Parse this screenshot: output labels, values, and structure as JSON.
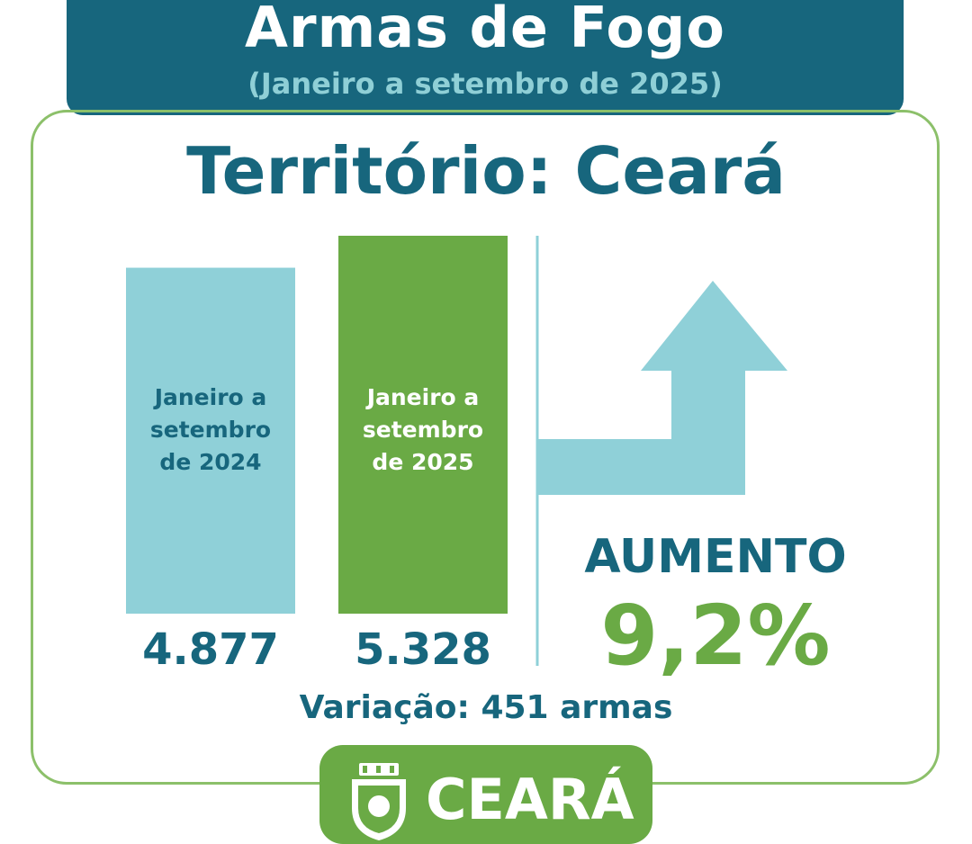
{
  "header": {
    "title": "Armas de Fogo",
    "subtitle": "(Janeiro a setembro de 2025)"
  },
  "territory": "Território: Ceará",
  "chart_data": {
    "type": "bar",
    "categories": [
      "Janeiro a setembro de 2024",
      "Janeiro a setembro de 2025"
    ],
    "category_lines": [
      [
        "Janeiro a",
        "setembro",
        "de 2024"
      ],
      [
        "Janeiro a",
        "setembro",
        "de 2025"
      ]
    ],
    "values": [
      4877,
      5328
    ],
    "value_labels": [
      "4.877",
      "5.328"
    ],
    "colors": [
      "#8fd0d8",
      "#6aaa45"
    ],
    "label_colors": [
      "#17667d",
      "#ffffff"
    ],
    "trend": "up"
  },
  "change": {
    "label": "AUMENTO",
    "percent": "9,2%",
    "variation": "Variação: 451 armas"
  },
  "colors": {
    "primary": "#17667d",
    "accent": "#6aaa45",
    "light": "#8fd0d8",
    "border": "#8cc06a"
  },
  "footer": {
    "text": "CEARÁ"
  }
}
